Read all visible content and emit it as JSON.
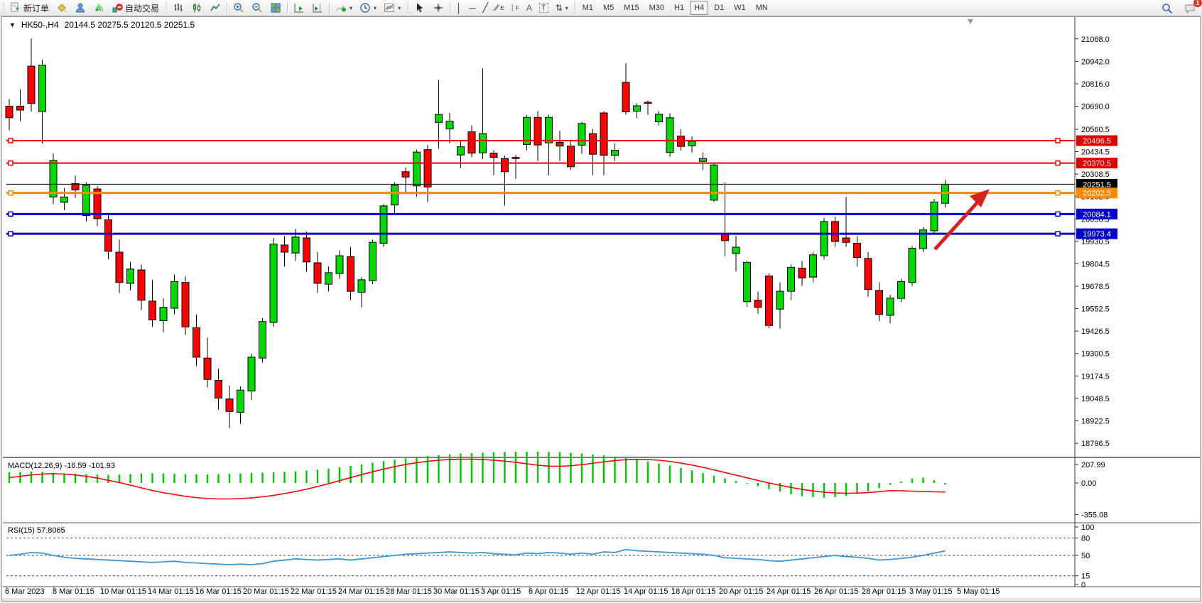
{
  "toolbar": {
    "new_order_label": "新订单",
    "auto_trading_label": "自动交易",
    "timeframes": [
      "M1",
      "M5",
      "M15",
      "M30",
      "H1",
      "H4",
      "D1",
      "W1",
      "MN"
    ],
    "active_timeframe": "H4",
    "notification_count": "1",
    "icon_names": [
      "new-order",
      "paint-bucket",
      "publisher",
      "signal",
      "auto-trading",
      "bar-chart",
      "candlestick-chart",
      "line-chart",
      "zoom-in",
      "zoom-out",
      "tile-windows",
      "auto-scroll",
      "chart-shift",
      "indicators",
      "periods",
      "templates",
      "cursor",
      "crosshair",
      "vertical-line",
      "horizontal-line",
      "trendline",
      "equidistant-channel",
      "fibonacci",
      "text",
      "text-label",
      "arrows",
      "search",
      "chat"
    ]
  },
  "icons": {
    "dropdown": "▼",
    "caret": "▾",
    "crosshair": "+",
    "vline": "│",
    "hline": "─",
    "trendline": "╱",
    "channel": "∕∕",
    "channel_sub": "E",
    "fibo": "⁞",
    "fibo_sub": "F",
    "text": "A",
    "text_label": "T",
    "arrows": "⇅"
  },
  "chart": {
    "symbol": "HK50-,H4",
    "ohlc_text": "20144.5 20275.5 20120.5 20251.5",
    "open": "20144.5",
    "high": "20275.5",
    "low": "20120.5",
    "close": "20251.5"
  },
  "price_axis": {
    "ticks": [
      21068.0,
      20942.0,
      20816.0,
      20690.0,
      20560.5,
      20434.5,
      20308.5,
      20182.5,
      20056.5,
      19930.5,
      19804.5,
      19678.5,
      19552.5,
      19426.5,
      19300.5,
      19174.5,
      19048.5,
      18922.5,
      18796.5
    ],
    "badges": [
      {
        "label": "20496.5",
        "color": "#dd0000"
      },
      {
        "label": "20370.5",
        "color": "#dd0000"
      },
      {
        "label": "20251.5",
        "color": "#000000"
      },
      {
        "label": "20202.5",
        "color": "#ff8a00"
      },
      {
        "label": "20084.1",
        "color": "#0000cc"
      },
      {
        "label": "19973.4",
        "color": "#0000cc"
      }
    ]
  },
  "levels": [
    {
      "price": 20496.5,
      "color": "#ee0000",
      "width": 2,
      "handles": true
    },
    {
      "price": 20370.5,
      "color": "#ee0000",
      "width": 2,
      "handles": true
    },
    {
      "price": 20251.5,
      "color": "#000000",
      "width": 1,
      "handles": false
    },
    {
      "price": 20202.5,
      "color": "#ff8a00",
      "width": 3,
      "handles": true
    },
    {
      "price": 20084.1,
      "color": "#0000dd",
      "width": 3,
      "handles": true
    },
    {
      "price": 19973.4,
      "color": "#0000dd",
      "width": 3,
      "handles": true
    }
  ],
  "macd_panel": {
    "label": "MACD(12,26,9) -16.59 -101.93",
    "main_value": "-16.59",
    "signal_value": "-101.93",
    "axis": [
      "207.99",
      "0.00",
      "-355.08"
    ]
  },
  "rsi_panel": {
    "label": "RSI(15) 57.8065",
    "value": "57.8065",
    "axis": [
      "100",
      "80",
      "50",
      "15",
      "0"
    ],
    "dashed_levels": [
      80,
      50,
      15
    ]
  },
  "x_axis": {
    "labels": [
      "6 Mar 2023",
      "8 Mar 01:15",
      "10 Mar 01:15",
      "14 Mar 01:15",
      "16 Mar 01:15",
      "20 Mar 01:15",
      "22 Mar 01:15",
      "24 Mar 01:15",
      "28 Mar 01:15",
      "30 Mar 01:15",
      "3 Apr 01:15",
      "6 Apr 01:15",
      "12 Apr 01:15",
      "14 Apr 01:15",
      "18 Apr 01:15",
      "20 Apr 01:15",
      "24 Apr 01:15",
      "26 Apr 01:15",
      "28 Apr 01:15",
      "3 May 01:15",
      "5 May 01:15"
    ]
  },
  "annotation": {
    "type": "arrow",
    "color": "#d42222"
  },
  "chart_data": {
    "type": "candlestick",
    "symbol": "HK50",
    "timeframe": "H4",
    "ylim": [
      18717,
      21151
    ],
    "up_color": "#00d800",
    "down_color": "#ff0000",
    "candles_ohlc": [
      [
        20690,
        20730,
        20555,
        20625
      ],
      [
        20690,
        20785,
        20605,
        20668
      ],
      [
        20915,
        21070,
        20660,
        20705
      ],
      [
        20660,
        20950,
        20480,
        20920
      ],
      [
        20180,
        20425,
        20140,
        20385
      ],
      [
        20150,
        20230,
        20105,
        20180
      ],
      [
        20255,
        20300,
        20175,
        20220
      ],
      [
        20075,
        20262,
        20042,
        20246
      ],
      [
        20225,
        20240,
        20015,
        20058
      ],
      [
        20052,
        20090,
        19830,
        19875
      ],
      [
        19870,
        19940,
        19640,
        19700
      ],
      [
        19695,
        19815,
        19655,
        19775
      ],
      [
        19770,
        19800,
        19545,
        19600
      ],
      [
        19595,
        19715,
        19450,
        19490
      ],
      [
        19485,
        19610,
        19420,
        19560
      ],
      [
        19555,
        19745,
        19520,
        19705
      ],
      [
        19700,
        19735,
        19405,
        19450
      ],
      [
        19445,
        19520,
        19230,
        19280
      ],
      [
        19275,
        19390,
        19110,
        19155
      ],
      [
        19150,
        19215,
        18985,
        19050
      ],
      [
        19045,
        19120,
        18882,
        18975
      ],
      [
        18970,
        19115,
        18905,
        19095
      ],
      [
        19090,
        19300,
        19040,
        19280
      ],
      [
        19275,
        19500,
        19250,
        19480
      ],
      [
        19475,
        19950,
        19450,
        19915
      ],
      [
        19910,
        19960,
        19790,
        19870
      ],
      [
        19865,
        20000,
        19820,
        19955
      ],
      [
        19950,
        19985,
        19760,
        19815
      ],
      [
        19810,
        19870,
        19640,
        19695
      ],
      [
        19690,
        19790,
        19650,
        19755
      ],
      [
        19750,
        19880,
        19720,
        19850
      ],
      [
        19845,
        19900,
        19600,
        19650
      ],
      [
        19645,
        19730,
        19560,
        19715
      ],
      [
        19710,
        19940,
        19690,
        19925
      ],
      [
        19920,
        20140,
        19900,
        20130
      ],
      [
        20135,
        20262,
        20082,
        20246
      ],
      [
        20322,
        20346,
        20202,
        20292
      ],
      [
        20242,
        20446,
        20182,
        20432
      ],
      [
        20446,
        20472,
        20152,
        20236
      ],
      [
        20599,
        20837,
        20452,
        20644
      ],
      [
        20562,
        20652,
        20482,
        20606
      ],
      [
        20416,
        20492,
        20342,
        20462
      ],
      [
        20546,
        20582,
        20402,
        20426
      ],
      [
        20428,
        20902,
        20392,
        20536
      ],
      [
        20426,
        20442,
        20302,
        20402
      ],
      [
        20396,
        20412,
        20132,
        20322
      ],
      [
        20402,
        20416,
        20282,
        20398
      ],
      [
        20475,
        20640,
        20442,
        20627
      ],
      [
        20627,
        20662,
        20382,
        20472
      ],
      [
        20484,
        20642,
        20302,
        20627
      ],
      [
        20487,
        20552,
        20382,
        20466
      ],
      [
        20466,
        20502,
        20332,
        20350
      ],
      [
        20471,
        20602,
        20422,
        20593
      ],
      [
        20536,
        20562,
        20302,
        20420
      ],
      [
        20652,
        20662,
        20302,
        20414
      ],
      [
        20414,
        20482,
        20382,
        20442
      ],
      [
        20824,
        20933,
        20642,
        20658
      ],
      [
        20662,
        20706,
        20622,
        20692
      ],
      [
        20712,
        20722,
        20642,
        20706
      ],
      [
        20602,
        20662,
        20582,
        20645
      ],
      [
        20430,
        20650,
        20405,
        20625
      ],
      [
        20522,
        20560,
        20440,
        20464
      ],
      [
        20468,
        20520,
        20430,
        20493
      ],
      [
        20380,
        20430,
        20330,
        20396
      ],
      [
        20162,
        20372,
        20152,
        20360
      ],
      [
        19975,
        20262,
        19848,
        19935
      ],
      [
        19862,
        19962,
        19762,
        19898
      ],
      [
        19592,
        19822,
        19562,
        19812
      ],
      [
        19600,
        19648,
        19525,
        19560
      ],
      [
        19736,
        19752,
        19442,
        19458
      ],
      [
        19550,
        19700,
        19440,
        19650
      ],
      [
        19650,
        19800,
        19600,
        19785
      ],
      [
        19780,
        19820,
        19680,
        19725
      ],
      [
        19730,
        19870,
        19700,
        19855
      ],
      [
        19850,
        20062,
        19830,
        20042
      ],
      [
        20042,
        20070,
        19900,
        19930
      ],
      [
        19950,
        20180,
        19900,
        19925
      ],
      [
        19920,
        19960,
        19790,
        19840
      ],
      [
        19835,
        19870,
        19620,
        19660
      ],
      [
        19655,
        19700,
        19482,
        19520
      ],
      [
        19515,
        19630,
        19470,
        19612
      ],
      [
        19610,
        19720,
        19590,
        19705
      ],
      [
        19700,
        19905,
        19680,
        19892
      ],
      [
        19890,
        20010,
        19870,
        19995
      ],
      [
        19990,
        20170,
        19970,
        20152
      ],
      [
        20144.5,
        20275.5,
        20120.5,
        20251.5
      ]
    ],
    "macd_histogram": [
      120,
      125,
      130,
      125,
      115,
      110,
      105,
      100,
      95,
      90,
      95,
      100,
      105,
      110,
      108,
      105,
      100,
      98,
      96,
      100,
      104,
      108,
      112,
      116,
      120,
      126,
      132,
      140,
      150,
      162,
      176,
      192,
      210,
      228,
      246,
      262,
      278,
      292,
      304,
      314,
      322,
      330,
      336,
      342,
      346,
      350,
      352,
      353,
      352,
      350,
      346,
      340,
      332,
      322,
      310,
      296,
      280,
      262,
      242,
      220,
      196,
      170,
      142,
      112,
      82,
      52,
      22,
      -8,
      -38,
      -68,
      -98,
      -128,
      -150,
      -162,
      -166,
      -160,
      -146,
      -124,
      -94,
      -58,
      -20,
      16,
      48,
      60,
      30,
      -17
    ],
    "macd_signal": [
      60,
      75,
      90,
      100,
      105,
      100,
      90,
      75,
      55,
      30,
      5,
      -25,
      -55,
      -85,
      -110,
      -130,
      -150,
      -165,
      -175,
      -180,
      -180,
      -176,
      -168,
      -156,
      -140,
      -120,
      -96,
      -70,
      -40,
      -8,
      26,
      60,
      94,
      126,
      156,
      184,
      208,
      228,
      244,
      256,
      264,
      268,
      268,
      264,
      256,
      246,
      232,
      216,
      200,
      190,
      188,
      194,
      206,
      222,
      238,
      252,
      262,
      266,
      264,
      256,
      242,
      224,
      202,
      176,
      148,
      118,
      88,
      58,
      28,
      0,
      -26,
      -50,
      -72,
      -90,
      -104,
      -112,
      -116,
      -114,
      -108,
      -98,
      -86,
      -88,
      -92,
      -96,
      -100,
      -102
    ],
    "rsi_series": [
      50,
      52,
      55,
      54,
      50,
      47,
      45,
      44,
      43,
      42,
      41,
      40,
      39,
      38,
      39,
      40,
      38,
      37,
      36,
      35,
      34,
      35,
      34,
      36,
      40,
      42,
      44,
      43,
      42,
      43,
      44,
      42,
      44,
      46,
      48,
      50,
      52,
      53,
      54,
      55,
      56,
      55,
      54,
      55,
      53,
      52,
      51,
      54,
      53,
      55,
      54,
      52,
      54,
      52,
      56,
      55,
      60,
      58,
      57,
      56,
      55,
      54,
      53,
      52,
      50,
      46,
      45,
      44,
      43,
      41,
      40,
      42,
      44,
      46,
      48,
      50,
      48,
      47,
      45,
      42,
      43,
      45,
      47,
      50,
      54,
      57.8
    ]
  }
}
